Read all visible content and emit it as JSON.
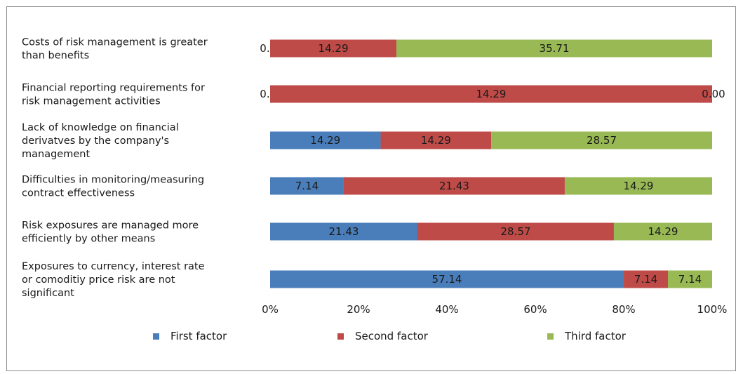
{
  "chart_data": {
    "type": "bar",
    "orientation": "horizontal",
    "stacked": "percent",
    "categories": [
      "Costs of risk management is greater than benefits",
      "Financial reporting requirements for risk management activities",
      "Lack of knowledge on financial derivatves by the company's management",
      "Difficulties in monitoring/measuring contract effectiveness",
      "Risk exposures are managed more efficiently by other means",
      "Exposures to currency, interest rate or comoditiy price risk are not significant"
    ],
    "category_lines": [
      [
        "Costs of risk management is greater",
        "than benefits"
      ],
      [
        "Financial reporting requirements for",
        "risk management activities"
      ],
      [
        "Lack of knowledge on financial",
        "derivatves by the company's",
        "management"
      ],
      [
        "Difficulties in monitoring/measuring",
        "contract effectiveness"
      ],
      [
        "Risk exposures are managed more",
        "efficiently by other means"
      ],
      [
        "Exposures to currency, interest rate",
        "or comoditiy price risk are not",
        "significant"
      ]
    ],
    "series": [
      {
        "name": "First factor",
        "color": "#4a7ebb",
        "values": [
          0.0,
          0.0,
          14.29,
          7.14,
          21.43,
          57.14
        ]
      },
      {
        "name": "Second factor",
        "color": "#be4b48",
        "values": [
          14.29,
          14.29,
          14.29,
          21.43,
          28.57,
          7.14
        ]
      },
      {
        "name": "Third factor",
        "color": "#98b954",
        "values": [
          35.71,
          0.0,
          28.57,
          14.29,
          14.29,
          7.14
        ]
      }
    ],
    "x_ticks": [
      "0%",
      "20%",
      "40%",
      "60%",
      "80%",
      "100%"
    ],
    "xlim": [
      0,
      100
    ],
    "grid": false,
    "legend_position": "bottom"
  }
}
